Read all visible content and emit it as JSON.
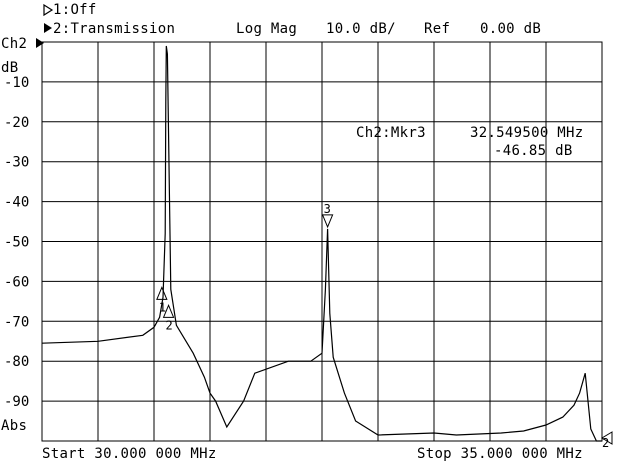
{
  "header": {
    "ch1_line": "1:Off",
    "ch2_line": "2:Transmission",
    "format": "Log Mag",
    "scale": "10.0 dB/",
    "ref_label": "Ref",
    "ref_value": "0.00 dB"
  },
  "left_labels": {
    "channel": "Ch2",
    "unit": "dB",
    "abs": "Abs"
  },
  "y_ticks": [
    "-10",
    "-20",
    "-30",
    "-40",
    "-50",
    "-60",
    "-70",
    "-80",
    "-90"
  ],
  "marker_readout": {
    "name": "Ch2:Mkr3",
    "freq": "32.549500 MHz",
    "value": "-46.85 dB"
  },
  "footer": {
    "start": "Start 30.000 000 MHz",
    "stop": "Stop 35.000 000 MHz"
  },
  "ref_pointer_label": "2",
  "markers": [
    {
      "label": "1",
      "freq_mhz": 31.07,
      "db": -61.5
    },
    {
      "label": "2",
      "freq_mhz": 31.13,
      "db": -66.0
    },
    {
      "label": "3",
      "freq_mhz": 32.55,
      "db": -46.85
    }
  ],
  "chart_data": {
    "type": "line",
    "x_range_mhz": [
      30.0,
      35.0
    ],
    "y_range_db": [
      -100,
      0
    ],
    "x": [
      30.0,
      30.5,
      30.9,
      31.0,
      31.05,
      31.08,
      31.1,
      31.105,
      31.11,
      31.12,
      31.15,
      31.2,
      31.35,
      31.45,
      31.5,
      31.55,
      31.65,
      31.8,
      31.9,
      32.2,
      32.4,
      32.5,
      32.53,
      32.55,
      32.57,
      32.6,
      32.7,
      32.8,
      33.0,
      33.5,
      33.7,
      34.1,
      34.3,
      34.5,
      34.65,
      34.75,
      34.8,
      34.85,
      34.9,
      34.95,
      35.0
    ],
    "y": [
      -75.5,
      -75.0,
      -73.5,
      -71.5,
      -69.0,
      -64.0,
      -48.0,
      -15.0,
      -1.0,
      -3.0,
      -62.0,
      -71.0,
      -78.0,
      -84.0,
      -88.0,
      -90.0,
      -96.5,
      -90.0,
      -83.0,
      -80.0,
      -80.0,
      -78.0,
      -62.0,
      -46.85,
      -68.0,
      -79.0,
      -88.0,
      -95.0,
      -98.5,
      -98.0,
      -98.5,
      -98.0,
      -97.5,
      -96.0,
      -94.0,
      -91.0,
      -88.0,
      -83.0,
      -97.0,
      -100,
      -100
    ]
  }
}
